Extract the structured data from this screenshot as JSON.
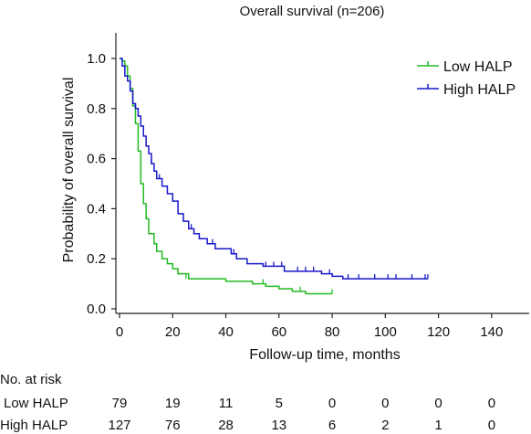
{
  "chart_data": {
    "type": "line",
    "subtype": "kaplan-meier",
    "title": "Overall survival (n=206)",
    "xlabel": "Follow-up time, months",
    "ylabel": "Probability of overall survival",
    "xlim": [
      0,
      150
    ],
    "ylim": [
      0,
      1.05
    ],
    "x_ticks": [
      0,
      20,
      40,
      60,
      80,
      100,
      120,
      140
    ],
    "y_ticks": [
      0.0,
      0.2,
      0.4,
      0.6,
      0.8,
      1.0
    ],
    "y_tick_labels": [
      "0.0",
      "0.2",
      "0.4",
      "0.6",
      "0.8",
      "1.0"
    ],
    "grid": false,
    "legend_position": "top-right",
    "series": [
      {
        "name": "Low HALP",
        "color": "#22bb22",
        "steps": [
          [
            0,
            1.0
          ],
          [
            1,
            0.99
          ],
          [
            2,
            0.97
          ],
          [
            3,
            0.93
          ],
          [
            4,
            0.88
          ],
          [
            5,
            0.81
          ],
          [
            6,
            0.74
          ],
          [
            7,
            0.63
          ],
          [
            8,
            0.5
          ],
          [
            9,
            0.42
          ],
          [
            10,
            0.36
          ],
          [
            11,
            0.3
          ],
          [
            13,
            0.26
          ],
          [
            14,
            0.23
          ],
          [
            16,
            0.2
          ],
          [
            18,
            0.18
          ],
          [
            20,
            0.16
          ],
          [
            22,
            0.14
          ],
          [
            26,
            0.12
          ],
          [
            40,
            0.11
          ],
          [
            50,
            0.1
          ],
          [
            55,
            0.09
          ],
          [
            60,
            0.08
          ],
          [
            65,
            0.07
          ],
          [
            70,
            0.06
          ],
          [
            80,
            0.06
          ]
        ],
        "censors": [
          [
            10,
            0.36
          ],
          [
            25,
            0.12
          ],
          [
            54,
            0.1
          ],
          [
            68,
            0.07
          ],
          [
            80,
            0.06
          ]
        ]
      },
      {
        "name": "High HALP",
        "color": "#1818cc",
        "steps": [
          [
            0,
            1.0
          ],
          [
            1,
            0.97
          ],
          [
            2,
            0.93
          ],
          [
            3,
            0.91
          ],
          [
            4,
            0.87
          ],
          [
            5,
            0.82
          ],
          [
            6,
            0.8
          ],
          [
            7,
            0.77
          ],
          [
            8,
            0.73
          ],
          [
            9,
            0.69
          ],
          [
            10,
            0.65
          ],
          [
            11,
            0.62
          ],
          [
            12,
            0.58
          ],
          [
            13,
            0.55
          ],
          [
            14,
            0.52
          ],
          [
            16,
            0.49
          ],
          [
            18,
            0.46
          ],
          [
            20,
            0.43
          ],
          [
            22,
            0.38
          ],
          [
            24,
            0.35
          ],
          [
            26,
            0.32
          ],
          [
            28,
            0.3
          ],
          [
            30,
            0.28
          ],
          [
            33,
            0.26
          ],
          [
            36,
            0.24
          ],
          [
            42,
            0.22
          ],
          [
            44,
            0.2
          ],
          [
            48,
            0.18
          ],
          [
            54,
            0.17
          ],
          [
            62,
            0.15
          ],
          [
            76,
            0.14
          ],
          [
            80,
            0.13
          ],
          [
            84,
            0.12
          ],
          [
            116,
            0.12
          ]
        ],
        "censors": [
          [
            4,
            0.87
          ],
          [
            6,
            0.8
          ],
          [
            12,
            0.58
          ],
          [
            15,
            0.52
          ],
          [
            27,
            0.32
          ],
          [
            35,
            0.26
          ],
          [
            43,
            0.22
          ],
          [
            55,
            0.17
          ],
          [
            58,
            0.17
          ],
          [
            61,
            0.17
          ],
          [
            67,
            0.15
          ],
          [
            70,
            0.15
          ],
          [
            73,
            0.15
          ],
          [
            79,
            0.14
          ],
          [
            86,
            0.12
          ],
          [
            90,
            0.12
          ],
          [
            96,
            0.12
          ],
          [
            101,
            0.12
          ],
          [
            104,
            0.12
          ],
          [
            110,
            0.12
          ],
          [
            115,
            0.12
          ],
          [
            116,
            0.12
          ]
        ]
      }
    ],
    "risk_table": {
      "header": "No. at risk",
      "rows": [
        {
          "label": "Low HALP",
          "values": [
            "79",
            "19",
            "11",
            "5",
            "0",
            "0",
            "0",
            "0"
          ]
        },
        {
          "label": "High HALP",
          "values": [
            "127",
            "76",
            "28",
            "13",
            "6",
            "2",
            "1",
            "0"
          ]
        }
      ]
    }
  }
}
